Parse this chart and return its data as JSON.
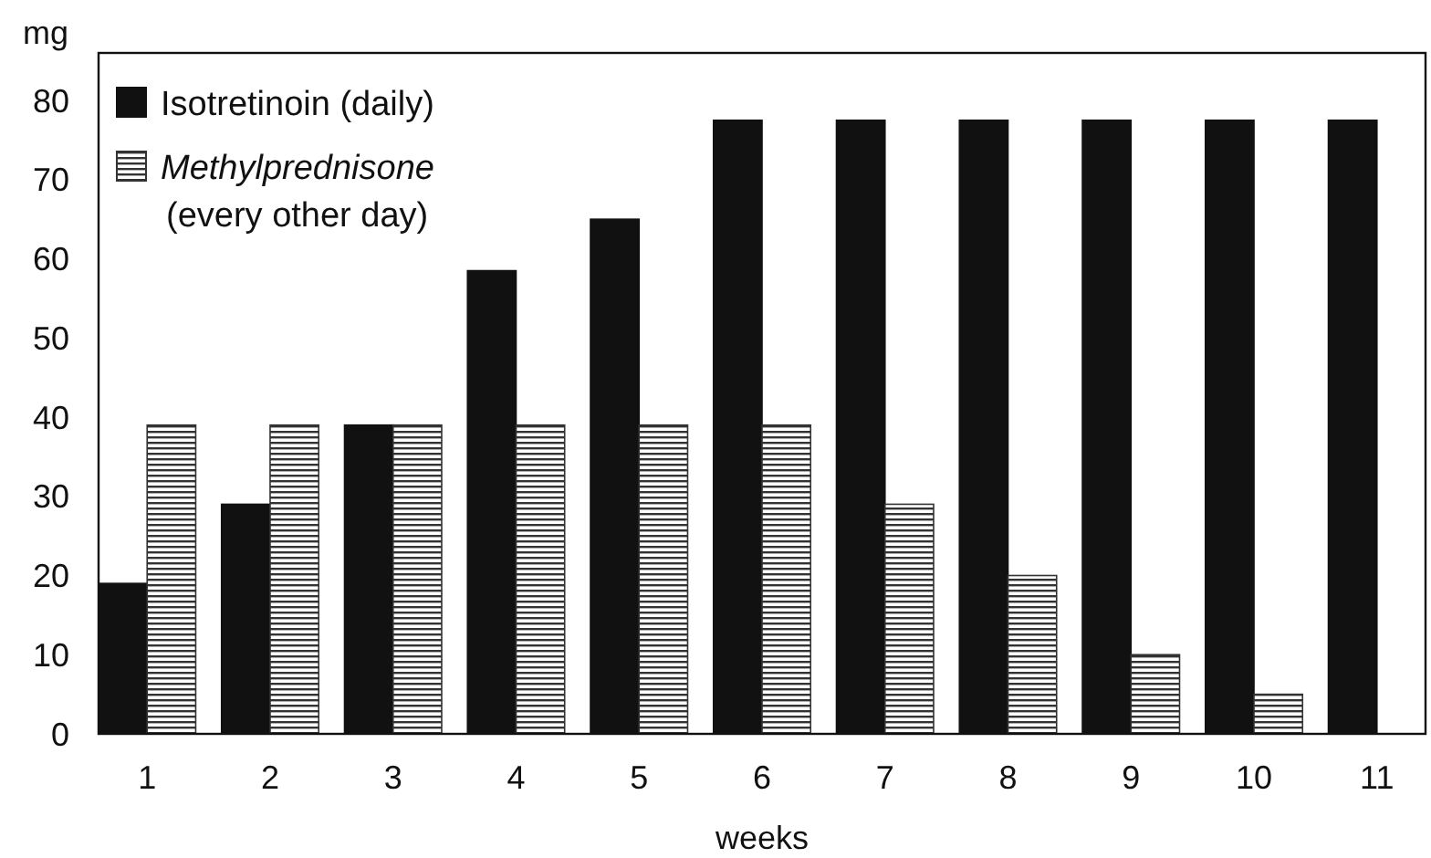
{
  "chart_data": {
    "type": "bar",
    "ylabel": "mg",
    "xlabel": "weeks",
    "categories": [
      "1",
      "2",
      "3",
      "4",
      "5",
      "6",
      "7",
      "8",
      "9",
      "10",
      "11"
    ],
    "series": [
      {
        "name": "Isotretinoin (daily)",
        "color": "#111111",
        "values": [
          19,
          29,
          39,
          58.5,
          65,
          77.5,
          77.5,
          77.5,
          77.5,
          77.5,
          77.5
        ]
      },
      {
        "name": "Methylprednisone (every other day)",
        "color": "#333333",
        "values": [
          39,
          39,
          39,
          39,
          39,
          39,
          29,
          20,
          10,
          5,
          0
        ]
      }
    ],
    "ylim": [
      0,
      86
    ],
    "yticks": [
      0,
      10,
      20,
      30,
      40,
      50,
      60,
      70,
      80
    ],
    "grid": false,
    "legend": "top left"
  }
}
